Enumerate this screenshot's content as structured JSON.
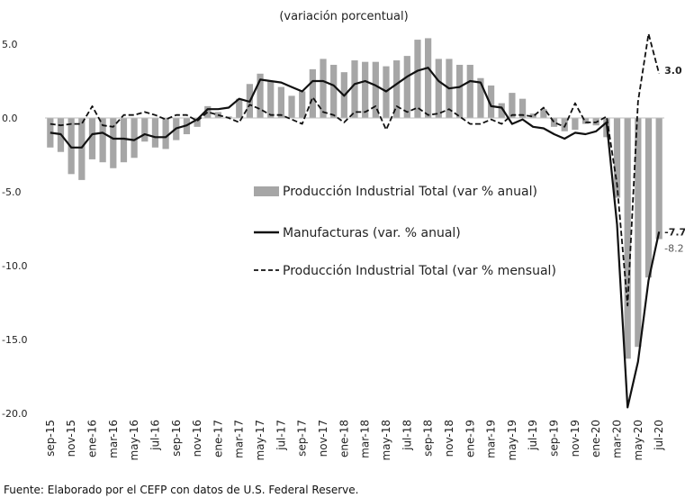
{
  "chart_data": {
    "type": "bar+line",
    "subtitle": "(variación porcentual)",
    "source": "Fuente: Elaborado por el CEFP con datos de U.S. Federal Reserve.",
    "ylim": [
      -20,
      6
    ],
    "yticks": [
      "5.0",
      "0.0",
      "-5.0",
      "-10.0",
      "-15.0",
      "-20.0"
    ],
    "ytick_values": [
      5,
      0,
      -5,
      -10,
      -15,
      -20
    ],
    "categories": [
      "sep-15",
      "oct-15",
      "nov-15",
      "dic-15",
      "ene-16",
      "feb-16",
      "mar-16",
      "abr-16",
      "may-16",
      "jun-16",
      "jul-16",
      "ago-16",
      "sep-16",
      "oct-16",
      "nov-16",
      "dic-16",
      "ene-17",
      "feb-17",
      "mar-17",
      "abr-17",
      "may-17",
      "jun-17",
      "jul-17",
      "ago-17",
      "sep-17",
      "oct-17",
      "nov-17",
      "dic-17",
      "ene-18",
      "feb-18",
      "mar-18",
      "abr-18",
      "may-18",
      "jun-18",
      "jul-18",
      "ago-18",
      "sep-18",
      "oct-18",
      "nov-18",
      "dic-18",
      "ene-19",
      "feb-19",
      "mar-19",
      "abr-19",
      "may-19",
      "jun-19",
      "jul-19",
      "ago-19",
      "sep-19",
      "oct-19",
      "nov-19",
      "dic-19",
      "ene-20",
      "feb-20",
      "mar-20",
      "abr-20",
      "may-20",
      "jun-20",
      "jul-20"
    ],
    "xtick_labels": [
      "sep-15",
      "nov-15",
      "ene-16",
      "mar-16",
      "may-16",
      "jul-16",
      "sep-16",
      "nov-16",
      "ene-17",
      "mar-17",
      "may-17",
      "jul-17",
      "sep-17",
      "nov-17",
      "ene-18",
      "mar-18",
      "may-18",
      "jul-18",
      "sep-18",
      "nov-18",
      "ene-19",
      "mar-19",
      "may-19",
      "jul-19",
      "sep-19",
      "nov-19",
      "ene-20",
      "mar-20",
      "may-20",
      "jul-20"
    ],
    "series": [
      {
        "name": "Producción Industrial Total (var % anual)",
        "kind": "bar",
        "color": "#a6a6a6",
        "values": [
          -2.0,
          -2.3,
          -3.8,
          -4.2,
          -2.8,
          -3.0,
          -3.4,
          -3.0,
          -2.7,
          -1.6,
          -2.0,
          -2.1,
          -1.5,
          -1.1,
          -0.6,
          0.8,
          0.4,
          0.1,
          1.3,
          2.3,
          3.0,
          2.5,
          2.1,
          1.5,
          1.8,
          3.3,
          4.0,
          3.6,
          3.1,
          3.9,
          3.8,
          3.8,
          3.5,
          3.9,
          4.2,
          5.3,
          5.4,
          4.0,
          4.0,
          3.6,
          3.6,
          2.7,
          2.2,
          1.0,
          1.7,
          1.3,
          0.3,
          0.6,
          -0.6,
          -0.9,
          -0.8,
          -0.4,
          -0.5,
          -1.3,
          -5.4,
          -16.3,
          -15.5,
          -10.8,
          -8.2
        ]
      },
      {
        "name": "Manufacturas (var. % anual)",
        "kind": "line",
        "style": "solid",
        "color": "#111111",
        "values": [
          -1.0,
          -1.1,
          -2.0,
          -2.0,
          -1.1,
          -1.0,
          -1.4,
          -1.4,
          -1.5,
          -1.1,
          -1.3,
          -1.3,
          -0.7,
          -0.5,
          -0.1,
          0.6,
          0.6,
          0.7,
          1.3,
          1.1,
          2.6,
          2.5,
          2.4,
          2.1,
          1.8,
          2.5,
          2.5,
          2.2,
          1.5,
          2.3,
          2.5,
          2.2,
          1.8,
          2.3,
          2.8,
          3.2,
          3.4,
          2.5,
          2.0,
          2.1,
          2.5,
          2.4,
          0.8,
          0.7,
          -0.4,
          -0.1,
          -0.6,
          -0.7,
          -1.1,
          -1.4,
          -1.0,
          -1.1,
          -0.9,
          -0.3,
          -7.2,
          -19.6,
          -16.5,
          -11.0,
          -7.7
        ]
      },
      {
        "name": "Producción Industrial Total (var % mensual)",
        "kind": "line",
        "style": "dashed",
        "color": "#111111",
        "values": [
          -0.4,
          -0.5,
          -0.4,
          -0.4,
          0.8,
          -0.5,
          -0.6,
          0.2,
          0.2,
          0.4,
          0.2,
          -0.1,
          0.2,
          0.2,
          -0.2,
          0.4,
          0.2,
          0.0,
          -0.3,
          0.9,
          0.6,
          0.2,
          0.2,
          -0.1,
          -0.4,
          1.4,
          0.4,
          0.2,
          -0.3,
          0.4,
          0.4,
          0.8,
          -0.8,
          0.8,
          0.4,
          0.7,
          0.2,
          0.3,
          0.6,
          0.1,
          -0.4,
          -0.4,
          -0.1,
          -0.4,
          0.2,
          0.2,
          0.1,
          0.7,
          -0.3,
          -0.6,
          1.0,
          -0.3,
          -0.3,
          0.1,
          -4.5,
          -12.7,
          1.1,
          5.7,
          3.0
        ]
      }
    ],
    "end_labels": [
      {
        "series": 2,
        "text": "3.0",
        "bold": true
      },
      {
        "series": 1,
        "text": "-7.7",
        "bold": true
      },
      {
        "series": 0,
        "text": "-8.2",
        "bold": false
      }
    ],
    "legend": [
      {
        "label": "Producción Industrial Total (var % anual)",
        "marker": "bar"
      },
      {
        "label": "Manufacturas (var. % anual)",
        "marker": "solid"
      },
      {
        "label": "Producción Industrial Total (var % mensual)",
        "marker": "dashed"
      }
    ],
    "legend_position": "center-right",
    "grid": false
  }
}
